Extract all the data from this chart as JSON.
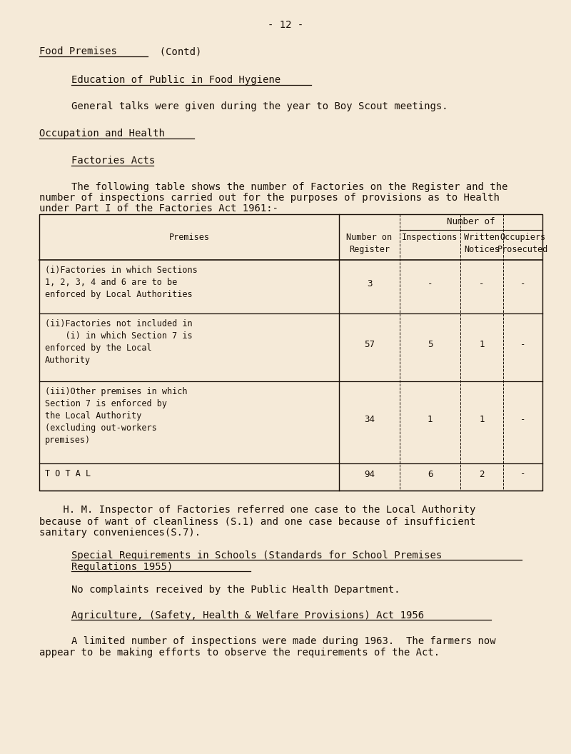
{
  "bg_color": "#f5ead8",
  "text_color": "#1a1008",
  "page_number": "- 12 -",
  "title1": "Food Premises",
  "title1_suffix": "  (Contd)",
  "subtitle1": "Education of Public in Food Hygiene",
  "para1": "General talks were given during the year to Boy Scout meetings.",
  "title2": "Occupation and Health",
  "subtitle2": "Factories Acts",
  "para2_line1": "The following table shows the number of Factories on the Register and the",
  "para2_line2": "number of inspections carried out for the purposes of provisions as to Health",
  "para2_line3": "under Part I of the Factories Act 1961:-",
  "table_col_headers": [
    "Premises",
    "Number on\nRegister",
    "Inspections",
    "Written\nNotices",
    "Occupiers\nProsecuted"
  ],
  "table_header_top": "Number of",
  "table_rows": [
    {
      "label_lines": [
        "(i)Factories in which Sections",
        "1, 2, 3, 4 and 6 are to be",
        "enforced by Local Authorities"
      ],
      "values": [
        "3",
        "-",
        "-",
        "-"
      ]
    },
    {
      "label_lines": [
        "(ii)Factories not included in",
        "    (i) in which Section 7 is",
        "enforced by the Local",
        "Authority"
      ],
      "values": [
        "57",
        "5",
        "1",
        "-"
      ]
    },
    {
      "label_lines": [
        "(iii)Other premises in which",
        "Section 7 is enforced by",
        "the Local Authority",
        "(excluding out-workers",
        "premises)"
      ],
      "values": [
        "34",
        "1",
        "1",
        "-"
      ]
    },
    {
      "label_lines": [
        "T O T A L"
      ],
      "values": [
        "94",
        "6",
        "2",
        "-"
      ]
    }
  ],
  "post_table_text": [
    "    H. M. Inspector of Factories referred one case to the Local Authority",
    "because of want of cleanliness (S.1) and one case because of insufficient",
    "sanitary conveniences(S.7)."
  ],
  "subtitle3_line1": "Special Requirements in Schools (Standards for School Premises",
  "subtitle3_line2": "Regulations 1955)",
  "para3": "No complaints received by the Public Health Department.",
  "subtitle4": "Agriculture, (Safety, Health & Welfare Provisions) Act 1956",
  "para4_line1": "A limited number of inspections were made during 1963.  The farmers now",
  "para4_line2": "appear to be making efforts to observe the requirements of the Act."
}
